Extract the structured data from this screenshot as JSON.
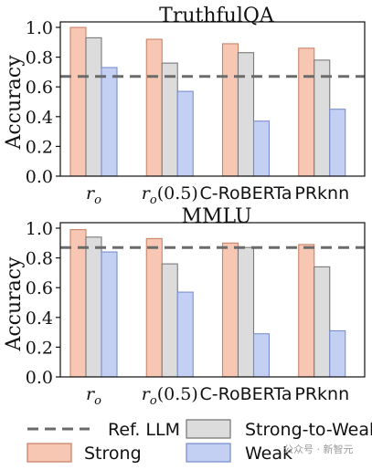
{
  "chart_data": [
    {
      "type": "bar",
      "title": "TruthfulQA",
      "ylabel": "Accuracy",
      "ylim": [
        0,
        1.0
      ],
      "yticks": [
        "0.0",
        "0.2",
        "0.4",
        "0.6",
        "0.8",
        "1.0"
      ],
      "categories": [
        "r_o",
        "r_o(0.5)",
        "C-RoBERTa",
        "PRknn"
      ],
      "series": [
        {
          "name": "Strong",
          "values": [
            1.0,
            0.92,
            0.89,
            0.86
          ]
        },
        {
          "name": "Strong-to-Weak",
          "values": [
            0.93,
            0.76,
            0.83,
            0.78
          ]
        },
        {
          "name": "Weak",
          "values": [
            0.73,
            0.57,
            0.37,
            0.45
          ]
        }
      ],
      "reference": {
        "name": "Ref. LLM",
        "value": 0.67
      }
    },
    {
      "type": "bar",
      "title": "MMLU",
      "ylabel": "Accuracy",
      "ylim": [
        0,
        1.0
      ],
      "yticks": [
        "0.0",
        "0.2",
        "0.4",
        "0.6",
        "0.8",
        "1.0"
      ],
      "categories": [
        "r_o",
        "r_o(0.5)",
        "C-RoBERTa",
        "PRknn"
      ],
      "series": [
        {
          "name": "Strong",
          "values": [
            0.99,
            0.93,
            0.9,
            0.89
          ]
        },
        {
          "name": "Strong-to-Weak",
          "values": [
            0.94,
            0.76,
            0.87,
            0.74
          ]
        },
        {
          "name": "Weak",
          "values": [
            0.84,
            0.57,
            0.29,
            0.31
          ]
        }
      ],
      "reference": {
        "name": "Ref. LLM",
        "value": 0.87
      }
    }
  ],
  "legend": {
    "ref": "Ref. LLM",
    "strong": "Strong",
    "stw": "Strong-to-Weak",
    "weak": "Weak"
  },
  "colors": {
    "strong_fill": "#f7c7b3",
    "strong_edge": "#c9846a",
    "stw_fill": "#dcdcdc",
    "stw_edge": "#7a7a7a",
    "weak_fill": "#c3d0f4",
    "weak_edge": "#7b8fcf",
    "ref_line": "#6b6b6b"
  },
  "watermark": "公众号 · 新智元"
}
